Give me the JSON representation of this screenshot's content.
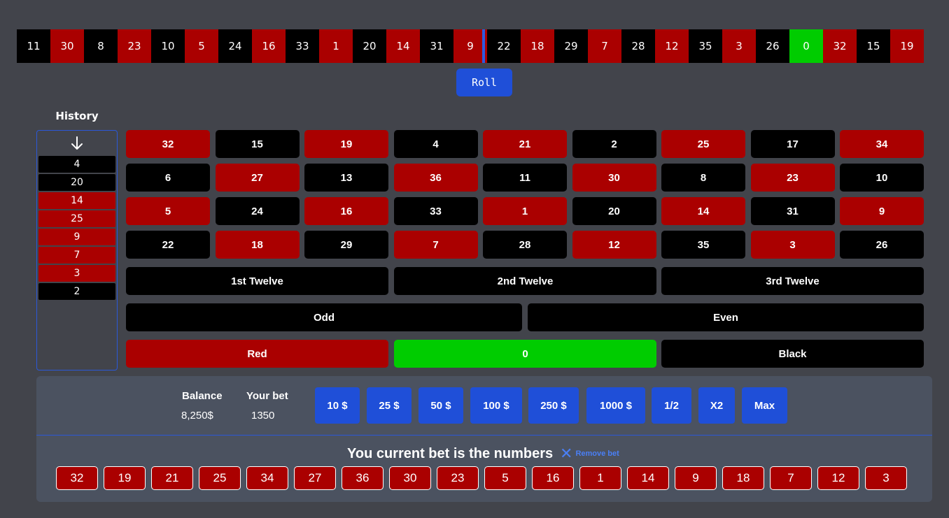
{
  "strip": [
    {
      "n": "11",
      "c": "black"
    },
    {
      "n": "30",
      "c": "red"
    },
    {
      "n": "8",
      "c": "black"
    },
    {
      "n": "23",
      "c": "red"
    },
    {
      "n": "10",
      "c": "black"
    },
    {
      "n": "5",
      "c": "red"
    },
    {
      "n": "24",
      "c": "black"
    },
    {
      "n": "16",
      "c": "red"
    },
    {
      "n": "33",
      "c": "black"
    },
    {
      "n": "1",
      "c": "red"
    },
    {
      "n": "20",
      "c": "black"
    },
    {
      "n": "14",
      "c": "red"
    },
    {
      "n": "31",
      "c": "black"
    },
    {
      "n": "9",
      "c": "red"
    },
    {
      "n": "22",
      "c": "black"
    },
    {
      "n": "18",
      "c": "red"
    },
    {
      "n": "29",
      "c": "black"
    },
    {
      "n": "7",
      "c": "red"
    },
    {
      "n": "28",
      "c": "black"
    },
    {
      "n": "12",
      "c": "red"
    },
    {
      "n": "35",
      "c": "black"
    },
    {
      "n": "3",
      "c": "red"
    },
    {
      "n": "26",
      "c": "black"
    },
    {
      "n": "0",
      "c": "green"
    },
    {
      "n": "32",
      "c": "red"
    },
    {
      "n": "15",
      "c": "black"
    },
    {
      "n": "19",
      "c": "red"
    }
  ],
  "roll_label": "Roll",
  "history": {
    "title": "History",
    "arrow_icon": "arrow-down-icon",
    "items": [
      {
        "n": "4",
        "c": "black"
      },
      {
        "n": "20",
        "c": "black"
      },
      {
        "n": "14",
        "c": "red"
      },
      {
        "n": "25",
        "c": "red"
      },
      {
        "n": "9",
        "c": "red"
      },
      {
        "n": "7",
        "c": "red"
      },
      {
        "n": "3",
        "c": "red"
      },
      {
        "n": "2",
        "c": "black"
      }
    ]
  },
  "board": {
    "rows": [
      [
        {
          "n": "32",
          "c": "red"
        },
        {
          "n": "15",
          "c": "black"
        },
        {
          "n": "19",
          "c": "red"
        },
        {
          "n": "4",
          "c": "black"
        },
        {
          "n": "21",
          "c": "red"
        },
        {
          "n": "2",
          "c": "black"
        },
        {
          "n": "25",
          "c": "red"
        },
        {
          "n": "17",
          "c": "black"
        },
        {
          "n": "34",
          "c": "red"
        }
      ],
      [
        {
          "n": "6",
          "c": "black"
        },
        {
          "n": "27",
          "c": "red"
        },
        {
          "n": "13",
          "c": "black"
        },
        {
          "n": "36",
          "c": "red"
        },
        {
          "n": "11",
          "c": "black"
        },
        {
          "n": "30",
          "c": "red"
        },
        {
          "n": "8",
          "c": "black"
        },
        {
          "n": "23",
          "c": "red"
        },
        {
          "n": "10",
          "c": "black"
        }
      ],
      [
        {
          "n": "5",
          "c": "red"
        },
        {
          "n": "24",
          "c": "black"
        },
        {
          "n": "16",
          "c": "red"
        },
        {
          "n": "33",
          "c": "black"
        },
        {
          "n": "1",
          "c": "red"
        },
        {
          "n": "20",
          "c": "black"
        },
        {
          "n": "14",
          "c": "red"
        },
        {
          "n": "31",
          "c": "black"
        },
        {
          "n": "9",
          "c": "red"
        }
      ],
      [
        {
          "n": "22",
          "c": "black"
        },
        {
          "n": "18",
          "c": "red"
        },
        {
          "n": "29",
          "c": "black"
        },
        {
          "n": "7",
          "c": "red"
        },
        {
          "n": "28",
          "c": "black"
        },
        {
          "n": "12",
          "c": "red"
        },
        {
          "n": "35",
          "c": "black"
        },
        {
          "n": "3",
          "c": "red"
        },
        {
          "n": "26",
          "c": "black"
        }
      ]
    ],
    "dozens": [
      "1st Twelve",
      "2nd Twelve",
      "3rd Twelve"
    ],
    "odd_label": "Odd",
    "even_label": "Even",
    "red_label": "Red",
    "zero_label": "0",
    "black_label": "Black"
  },
  "panel": {
    "balance_label": "Balance",
    "balance_value": "8,250$",
    "bet_label": "Your bet",
    "bet_value": "1350",
    "chips": [
      "10 $",
      "25 $",
      "50 $",
      "100 $",
      "250 $",
      "1000 $",
      "1/2",
      "X2",
      "Max"
    ],
    "bet_title": "You current bet is the numbers",
    "remove_icon": "close-icon",
    "remove_label": "Remove bet",
    "bet_numbers": [
      "32",
      "19",
      "21",
      "25",
      "34",
      "27",
      "36",
      "30",
      "23",
      "5",
      "16",
      "1",
      "14",
      "9",
      "18",
      "7",
      "12",
      "3"
    ]
  },
  "colors": {
    "red": "#aa0000",
    "black": "#000000",
    "green": "#00cc00",
    "accent": "#1f4fd8",
    "background": "#42444b",
    "panel": "#4b5260"
  }
}
